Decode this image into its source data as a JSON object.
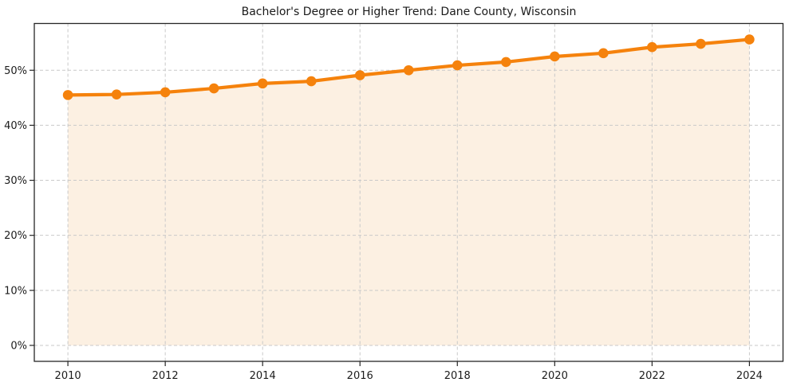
{
  "chart_data": {
    "type": "line",
    "title": "Bachelor's Degree or Higher Trend: Dane County, Wisconsin",
    "x": [
      2010,
      2011,
      2012,
      2013,
      2014,
      2015,
      2016,
      2017,
      2018,
      2019,
      2020,
      2021,
      2022,
      2023,
      2024
    ],
    "series": [
      {
        "name": "Bachelor's degree or higher (%)",
        "values": [
          45.5,
          45.6,
          46.0,
          46.7,
          47.6,
          48.0,
          49.1,
          50.0,
          50.9,
          51.5,
          52.5,
          53.1,
          54.2,
          54.8,
          55.6
        ]
      }
    ],
    "xlabel": "",
    "ylabel": "",
    "x_ticks": [
      2010,
      2012,
      2014,
      2016,
      2018,
      2020,
      2022,
      2024
    ],
    "x_tick_labels": [
      "2010",
      "2012",
      "2014",
      "2016",
      "2018",
      "2020",
      "2022",
      "2024"
    ],
    "y_ticks": [
      0,
      10,
      20,
      30,
      40,
      50
    ],
    "y_tick_labels": [
      "0%",
      "10%",
      "20%",
      "30%",
      "40%",
      "50%"
    ],
    "xlim": [
      2009.31,
      2024.69
    ],
    "ylim": [
      -2.9,
      58.5
    ],
    "grid": true,
    "grid_dashed": true,
    "legend": false,
    "area_fill": true,
    "marker": "circle",
    "style": {
      "line_color": "#f5820c",
      "marker_color": "#f5820c",
      "fill_color": "#fcf0e2",
      "grid_color": "#c9c9c9",
      "axis_color": "#262626",
      "text_color": "#1c1c1c",
      "background": "#ffffff"
    }
  }
}
